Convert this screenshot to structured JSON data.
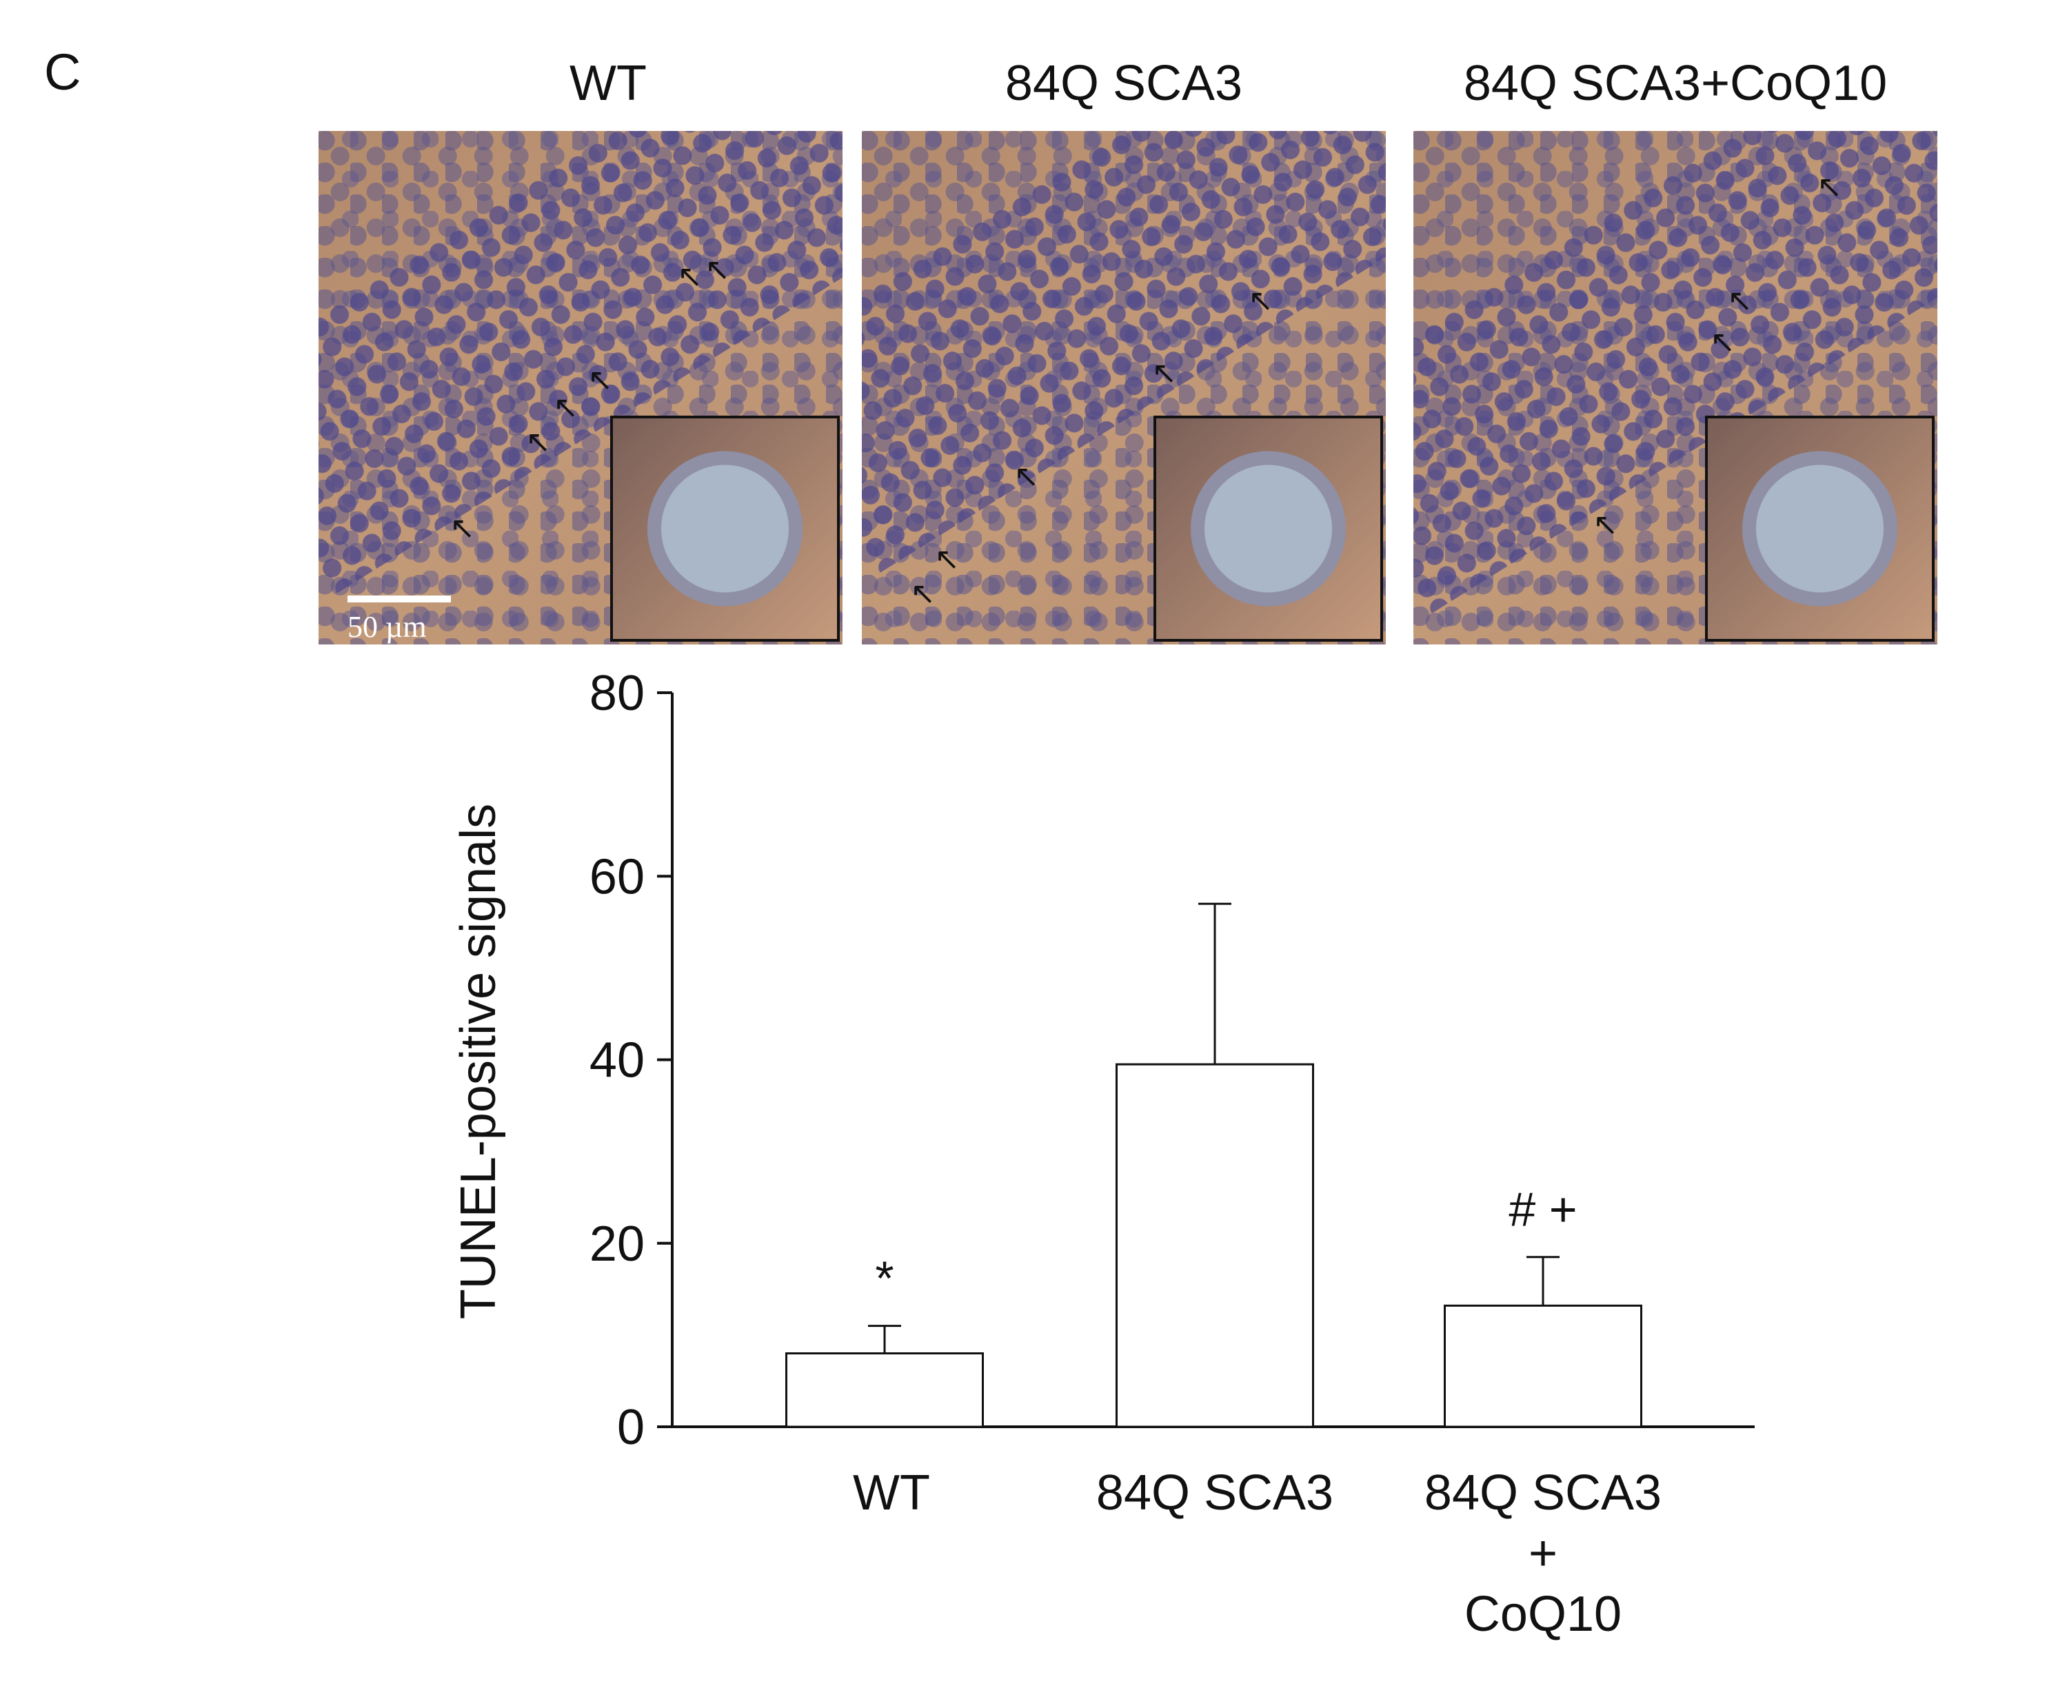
{
  "panel_label": "C",
  "micrographs": [
    {
      "title": "WT",
      "scale_bar_label": "50 µm"
    },
    {
      "title": "84Q SCA3"
    },
    {
      "title": "84Q SCA3+CoQ10"
    }
  ],
  "chart_data": {
    "type": "bar",
    "categories": [
      [
        "WT"
      ],
      [
        "84Q SCA3"
      ],
      [
        "84Q SCA3",
        "+",
        "CoQ10"
      ]
    ],
    "values": [
      8,
      39.5,
      13.2
    ],
    "error_upper": [
      3,
      17.5,
      5.3
    ],
    "annotations": [
      "*",
      "",
      "# +"
    ],
    "ylabel": "TUNEL-positive signals",
    "ylim": [
      0,
      80
    ],
    "yticks": [
      0,
      20,
      40,
      60,
      80
    ],
    "bar_fill": "#ffffff",
    "bar_stroke": "#111111",
    "grid": false
  }
}
